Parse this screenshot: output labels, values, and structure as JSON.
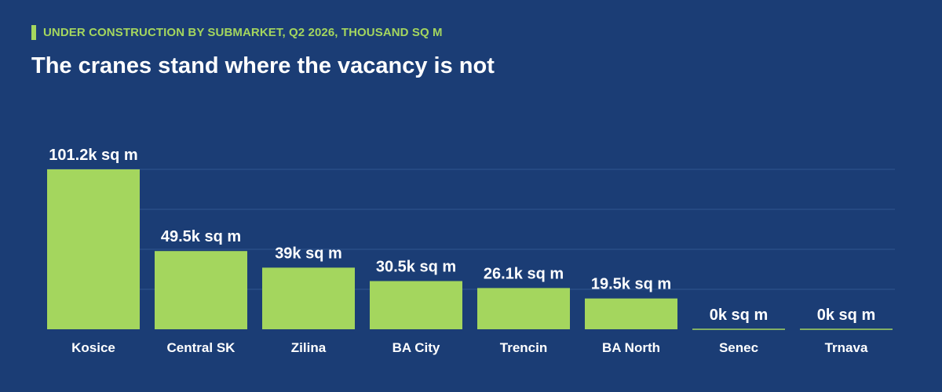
{
  "kicker": "UNDER CONSTRUCTION BY SUBMARKET, Q2 2026, THOUSAND SQ M",
  "title": "The cranes stand where the vacancy is not",
  "colors": {
    "background": "#1b3d75",
    "bar": "#a4d65e",
    "accent": "#a4d65e",
    "text": "#ffffff",
    "grid": "#2f5590"
  },
  "chart_data": {
    "type": "bar",
    "categories": [
      "Kosice",
      "Central SK",
      "Zilina",
      "BA City",
      "Trencin",
      "BA North",
      "Senec",
      "Trnava"
    ],
    "values": [
      101.2,
      49.5,
      39,
      30.5,
      26.1,
      19.5,
      0,
      0
    ],
    "data_labels": [
      "101.2k sq m",
      "49.5k sq m",
      "39k sq m",
      "30.5k sq m",
      "26.1k sq m",
      "19.5k sq m",
      "0k sq m",
      "0k sq m"
    ],
    "ylim": [
      0,
      101.2
    ],
    "grid": true,
    "xlabel": "",
    "ylabel": ""
  }
}
